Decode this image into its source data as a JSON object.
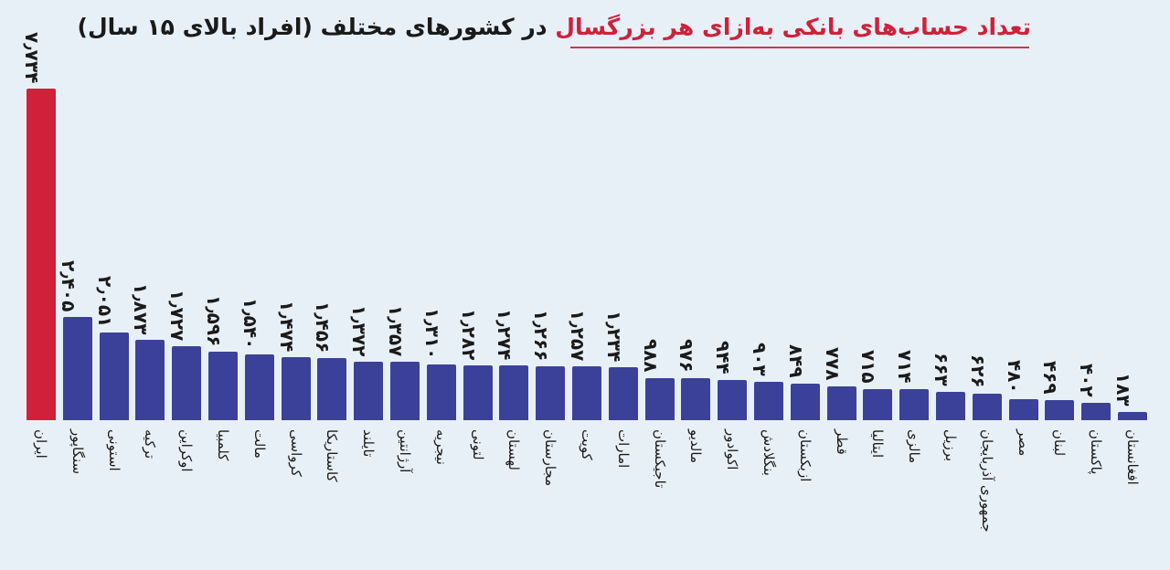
{
  "title": {
    "highlight": "تعداد حساب‌های بانکی به‌ازای هر بزرگسال",
    "rest": " در کشورهای مختلف (افراد بالای ۱۵ سال)"
  },
  "colors": {
    "background": "#e8f0f7",
    "highlight_bar": "#d1203a",
    "bar": "#3b4199",
    "title_highlight": "#d1203a"
  },
  "chart_data": {
    "type": "bar",
    "title": "تعداد حساب‌های بانکی به‌ازای هر بزرگسال در کشورهای مختلف (افراد بالای ۱۵ سال)",
    "xlabel": "",
    "ylabel": "",
    "grid": false,
    "legend": "none",
    "ylim": [
      0,
      8
    ],
    "categories": [
      "ایران",
      "سنگاپور",
      "استونی",
      "ترکیه",
      "اوکراین",
      "کلمبیا",
      "مالت",
      "کرواسی",
      "کاستاریکا",
      "تایلند",
      "آرژانتین",
      "نیجریه",
      "لتونی",
      "لهستان",
      "مجارستان",
      "کویت",
      "امارات",
      "تاجیکستان",
      "مالدیو",
      "اکوادور",
      "بنگلادش",
      "ازبکستان",
      "قطر",
      "ایتالیا",
      "مالزی",
      "برزیل",
      "جمهوری آذربایجان",
      "مصر",
      "لبنان",
      "پاکستان",
      "افغانستان"
    ],
    "values": [
      7.734,
      2.405,
      2.051,
      1.873,
      1.727,
      1.596,
      1.54,
      1.474,
      1.456,
      1.372,
      1.357,
      1.31,
      1.282,
      1.274,
      1.266,
      1.257,
      1.234,
      0.988,
      0.976,
      0.944,
      0.903,
      0.849,
      0.778,
      0.715,
      0.714,
      0.663,
      0.626,
      0.48,
      0.469,
      0.402,
      0.183
    ],
    "labels": [
      "۷٫۷۳۴",
      "۲٫۴۰۵",
      "۲٫۰۵۱",
      "۱٫۸۷۳",
      "۱٫۷۲۷",
      "۱٫۵۹۶",
      "۱٫۵۴۰",
      "۱٫۴۷۴",
      "۱٫۴۵۶",
      "۱٫۳۷۲",
      "۱٫۳۵۷",
      "۱٫۳۱۰",
      "۱٫۲۸۲",
      "۱٫۲۷۴",
      "۱٫۲۶۶",
      "۱٫۲۵۷",
      "۱٫۲۳۴",
      "۹۸۸",
      "۹۷۶",
      "۹۴۴",
      "۹۰۳",
      "۸۴۹",
      "۷۷۸",
      "۷۱۵",
      "۷۱۴",
      "۶۶۳",
      "۶۲۶",
      "۴۸۰",
      "۴۶۹",
      "۴۰۲",
      "۱۸۳"
    ],
    "highlight_index": 0
  }
}
